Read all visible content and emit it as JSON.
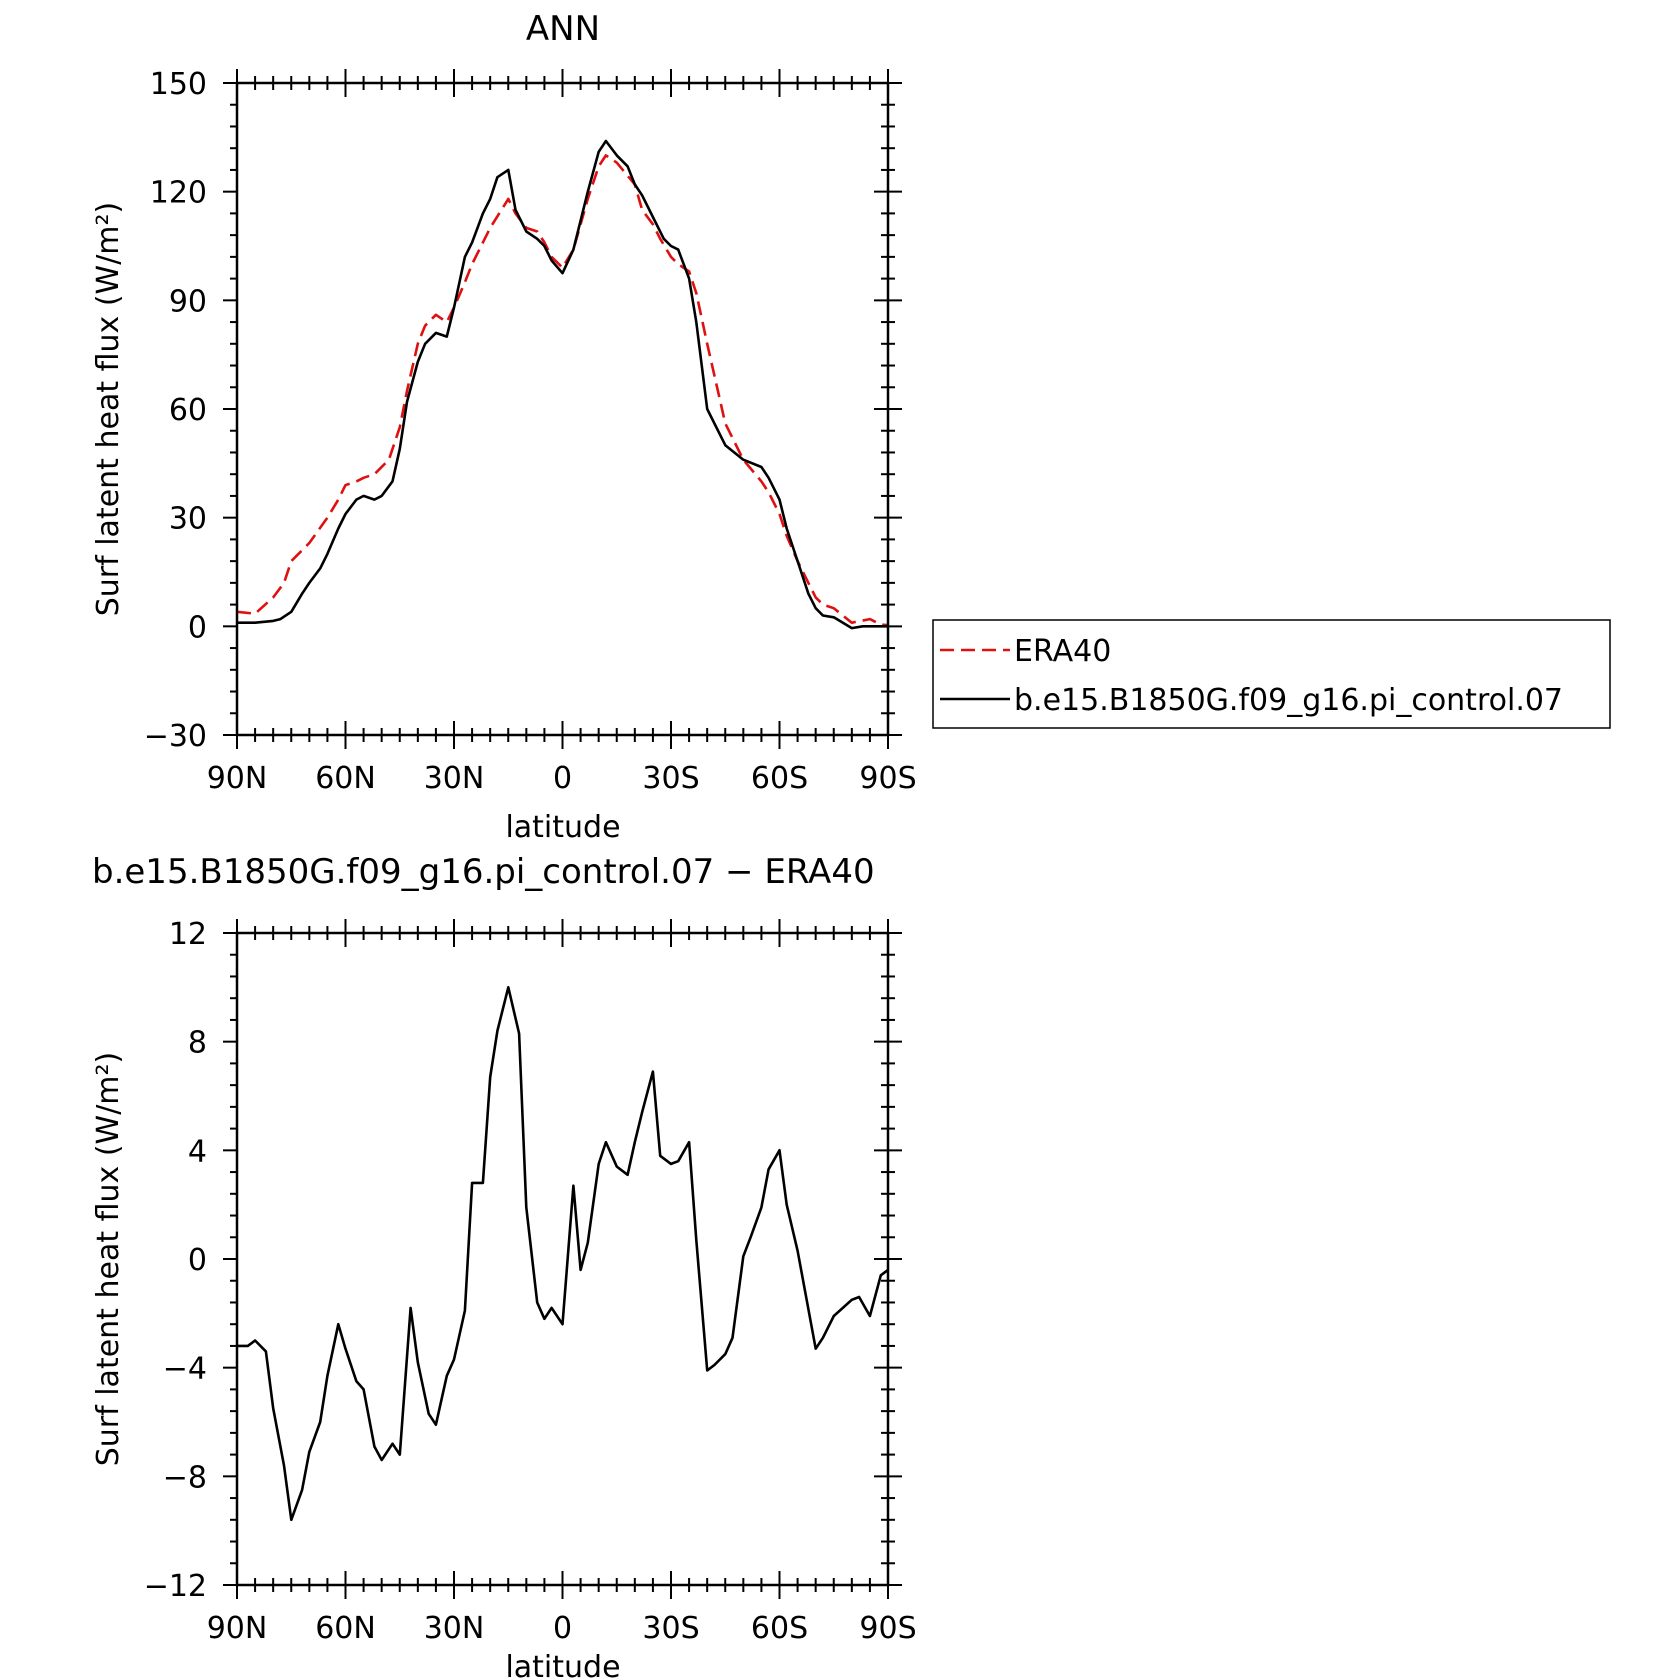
{
  "chart_data": [
    {
      "type": "line",
      "title": "ANN",
      "xlabel": "latitude",
      "ylabel": "Surf latent heat flux (W/m²)",
      "ylim": [
        -30,
        150
      ],
      "yticks": [
        -30,
        0,
        30,
        60,
        90,
        120,
        150
      ],
      "xlim": [
        90,
        -90
      ],
      "xticks": [
        90,
        60,
        30,
        0,
        -30,
        -60,
        -90
      ],
      "xtick_labels": [
        "90N",
        "60N",
        "30N",
        "0",
        "30S",
        "60S",
        "90S"
      ],
      "legend_position": "right",
      "series": [
        {
          "name": "ERA40",
          "color": "#e01010",
          "dashed": true,
          "x": [
            90,
            85,
            80,
            77,
            75,
            70,
            65,
            62,
            60,
            57,
            55,
            52,
            48,
            45,
            43,
            40,
            38,
            35,
            32,
            30,
            27,
            25,
            20,
            15,
            13,
            10,
            7,
            5,
            3,
            0,
            -3,
            -7,
            -10,
            -12,
            -15,
            -20,
            -22,
            -25,
            -27,
            -30,
            -32,
            -35,
            -37,
            -40,
            -45,
            -50,
            -55,
            -57,
            -60,
            -62,
            -65,
            -68,
            -70,
            -72,
            -75,
            -80,
            -85,
            -88,
            -90
          ],
          "values": [
            4,
            3.5,
            8,
            12,
            18,
            23,
            30,
            35,
            39,
            40,
            41,
            42,
            46,
            55,
            65,
            78,
            83,
            86,
            84,
            88,
            95,
            100,
            110,
            118,
            114,
            110,
            109,
            106,
            102,
            99,
            104,
            118,
            127,
            130,
            128,
            122,
            115,
            111,
            107,
            102,
            100,
            98,
            92,
            78,
            56,
            46,
            40,
            37,
            31,
            25,
            18,
            12,
            8,
            6,
            5,
            1,
            2,
            0.5,
            0.3
          ]
        },
        {
          "name": "b.e15.B1850G.f09_g16.pi_control.07",
          "color": "#000000",
          "dashed": false,
          "x": [
            90,
            85,
            80,
            78,
            75,
            72,
            70,
            67,
            65,
            62,
            60,
            57,
            55,
            52,
            50,
            47,
            45,
            43,
            40,
            38,
            35,
            32,
            30,
            27,
            25,
            22,
            20,
            18,
            15,
            13,
            10,
            7,
            5,
            3,
            0,
            -3,
            -7,
            -10,
            -12,
            -15,
            -18,
            -20,
            -22,
            -25,
            -28,
            -30,
            -32,
            -35,
            -37,
            -40,
            -45,
            -50,
            -55,
            -57,
            -60,
            -62,
            -65,
            -68,
            -70,
            -72,
            -75,
            -80,
            -83,
            -87,
            -90
          ],
          "values": [
            1,
            1,
            1.5,
            2,
            4,
            9,
            12,
            16,
            20,
            27,
            31,
            35,
            36,
            35,
            36,
            40,
            49,
            62,
            73,
            78,
            81,
            80,
            88,
            102,
            106,
            114,
            118,
            124,
            126,
            115,
            109,
            107,
            105,
            101,
            97.5,
            104,
            120,
            131,
            134,
            130,
            127,
            122,
            119,
            113,
            107,
            105,
            104,
            96,
            84,
            60,
            50,
            46,
            44,
            41,
            35,
            27,
            18,
            9,
            5,
            3,
            2.5,
            -0.5,
            0,
            0,
            0
          ]
        }
      ]
    },
    {
      "type": "line",
      "title": "b.e15.B1850G.f09_g16.pi_control.07 − ERA40",
      "xlabel": "latitude",
      "ylabel": "Surf latent heat flux (W/m²)",
      "ylim": [
        -12,
        12
      ],
      "yticks": [
        -12,
        -8,
        -4,
        0,
        4,
        8,
        12
      ],
      "xlim": [
        90,
        -90
      ],
      "xticks": [
        90,
        60,
        30,
        0,
        -30,
        -60,
        -90
      ],
      "xtick_labels": [
        "90N",
        "60N",
        "30N",
        "0",
        "30S",
        "60S",
        "90S"
      ],
      "series": [
        {
          "color": "#000000",
          "dashed": false,
          "x": [
            90,
            87,
            85,
            82,
            80,
            77,
            75,
            72,
            70,
            67,
            65,
            62,
            60,
            57,
            55,
            52,
            50,
            47,
            45,
            42,
            40,
            37,
            35,
            32,
            30,
            27,
            25,
            22,
            20,
            18,
            15,
            12,
            10,
            7,
            5,
            3,
            0,
            -3,
            -5,
            -7,
            -10,
            -12,
            -15,
            -18,
            -20,
            -22,
            -25,
            -27,
            -30,
            -32,
            -35,
            -37,
            -40,
            -42,
            -45,
            -47,
            -50,
            -52,
            -55,
            -57,
            -60,
            -62,
            -65,
            -70,
            -72,
            -75,
            -80,
            -82,
            -85,
            -88,
            -90
          ],
          "values": [
            -3.2,
            -3.2,
            -3,
            -3.4,
            -5.5,
            -7.6,
            -9.6,
            -8.5,
            -7.1,
            -6,
            -4.3,
            -2.4,
            -3.3,
            -4.5,
            -4.8,
            -6.9,
            -7.4,
            -6.8,
            -7.2,
            -1.8,
            -3.8,
            -5.7,
            -6.1,
            -4.3,
            -3.7,
            -1.9,
            2.8,
            2.8,
            6.7,
            8.4,
            10,
            8.3,
            1.9,
            -1.6,
            -2.2,
            -1.8,
            -2.4,
            2.7,
            -0.4,
            0.6,
            3.5,
            4.3,
            3.4,
            3.1,
            4.3,
            5.4,
            6.9,
            3.8,
            3.5,
            3.6,
            4.3,
            0.7,
            -4.1,
            -3.9,
            -3.5,
            -2.9,
            0.1,
            0.8,
            1.9,
            3.3,
            4,
            2,
            0.3,
            -3.3,
            -2.9,
            -2.1,
            -1.5,
            -1.4,
            -2.1,
            -0.6,
            -0.4
          ]
        }
      ]
    }
  ]
}
